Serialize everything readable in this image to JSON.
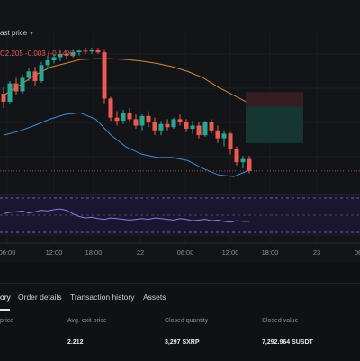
{
  "toolbar": {
    "price_mode": "ast price"
  },
  "ohlc": {
    "text": "C2.205  -0.003 (-0.14%)"
  },
  "time_axis": {
    "labels": [
      "06:00",
      "12:00",
      "18:00",
      "22",
      "06:00",
      "12:00",
      "18:00",
      "23",
      "06"
    ]
  },
  "tabs": {
    "items": [
      {
        "label": "ory",
        "active": true
      },
      {
        "label": "Order details",
        "active": false
      },
      {
        "label": "Transaction history",
        "active": false
      },
      {
        "label": "Assets",
        "active": false
      }
    ]
  },
  "table": {
    "headers": [
      "price",
      "Avg. exit price",
      "Closed quantity",
      "Closed value"
    ],
    "rows": [
      [
        "",
        "2.212",
        "3,297 SXRP",
        "7,292.964 SUSDT"
      ]
    ]
  },
  "colors": {
    "up": "#22ab94",
    "down": "#f0594d",
    "band_upper": "#d48a3a",
    "band_lower": "#3d8fd0",
    "rsi": "#8f7be0"
  },
  "chart_data": {
    "type": "candlestick",
    "series": [
      {
        "name": "price",
        "ohlc": [
          [
            2.302,
            2.31,
            2.284,
            2.292
          ],
          [
            2.292,
            2.318,
            2.29,
            2.315
          ],
          [
            2.315,
            2.322,
            2.3,
            2.305
          ],
          [
            2.305,
            2.326,
            2.302,
            2.322
          ],
          [
            2.322,
            2.334,
            2.318,
            2.33
          ],
          [
            2.33,
            2.336,
            2.312,
            2.318
          ],
          [
            2.318,
            2.342,
            2.316,
            2.338
          ],
          [
            2.338,
            2.35,
            2.334,
            2.344
          ],
          [
            2.344,
            2.352,
            2.34,
            2.348
          ],
          [
            2.348,
            2.356,
            2.343,
            2.352
          ],
          [
            2.352,
            2.356,
            2.346,
            2.35
          ],
          [
            2.35,
            2.358,
            2.348,
            2.354
          ],
          [
            2.354,
            2.358,
            2.35,
            2.356
          ],
          [
            2.356,
            2.36,
            2.352,
            2.355
          ],
          [
            2.355,
            2.36,
            2.352,
            2.357
          ],
          [
            2.357,
            2.36,
            2.352,
            2.354
          ],
          [
            2.354,
            2.358,
            2.29,
            2.296
          ],
          [
            2.296,
            2.298,
            2.268,
            2.272
          ],
          [
            2.272,
            2.28,
            2.262,
            2.268
          ],
          [
            2.268,
            2.282,
            2.264,
            2.278
          ],
          [
            2.278,
            2.284,
            2.266,
            2.27
          ],
          [
            2.27,
            2.276,
            2.258,
            2.262
          ],
          [
            2.262,
            2.276,
            2.256,
            2.274
          ],
          [
            2.274,
            2.28,
            2.26,
            2.266
          ],
          [
            2.266,
            2.272,
            2.25,
            2.256
          ],
          [
            2.256,
            2.268,
            2.25,
            2.264
          ],
          [
            2.264,
            2.27,
            2.256,
            2.26
          ],
          [
            2.26,
            2.272,
            2.258,
            2.27
          ],
          [
            2.27,
            2.276,
            2.262,
            2.266
          ],
          [
            2.266,
            2.27,
            2.254,
            2.258
          ],
          [
            2.258,
            2.268,
            2.252,
            2.262
          ],
          [
            2.262,
            2.266,
            2.246,
            2.25
          ],
          [
            2.25,
            2.268,
            2.248,
            2.266
          ],
          [
            2.266,
            2.27,
            2.252,
            2.256
          ],
          [
            2.256,
            2.262,
            2.24,
            2.246
          ],
          [
            2.246,
            2.256,
            2.236,
            2.252
          ],
          [
            2.252,
            2.254,
            2.226,
            2.232
          ],
          [
            2.232,
            2.236,
            2.212,
            2.216
          ],
          [
            2.216,
            2.224,
            2.208,
            2.22
          ],
          [
            2.22,
            2.224,
            2.202,
            2.205
          ]
        ]
      }
    ],
    "ylim": [
      2.18,
      2.37
    ],
    "bands": {
      "upper": [
        2.3,
        2.312,
        2.325,
        2.335,
        2.34,
        2.345,
        2.346,
        2.346,
        2.345,
        2.343,
        2.34,
        2.336,
        2.33,
        2.322,
        2.31,
        2.3,
        2.29
      ],
      "lower": [
        2.25,
        2.255,
        2.262,
        2.27,
        2.276,
        2.278,
        2.27,
        2.25,
        2.235,
        2.226,
        2.222,
        2.222,
        2.218,
        2.208,
        2.2,
        2.198,
        2.206
      ]
    },
    "rsi": [
      52,
      54,
      55,
      56,
      53,
      55,
      57,
      56,
      58,
      59,
      57,
      52,
      48,
      46,
      47,
      45,
      44,
      46,
      45,
      44,
      43,
      44,
      45,
      44,
      46,
      45,
      44,
      43,
      45,
      44,
      42,
      43,
      44,
      42,
      43,
      41,
      40,
      42,
      41,
      41
    ],
    "rsi_ylim": [
      20,
      80
    ],
    "last_price": 2.205
  }
}
